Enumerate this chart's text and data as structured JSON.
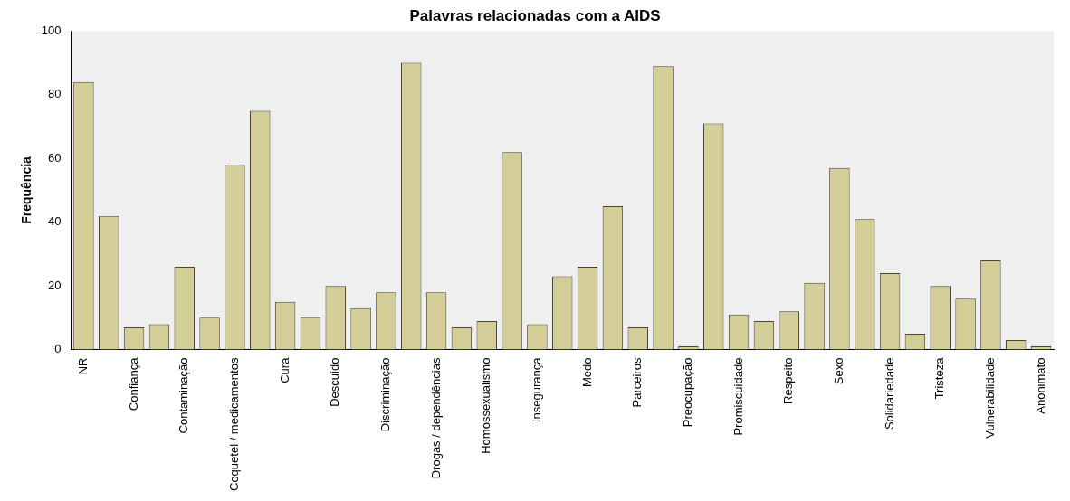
{
  "chart_data": {
    "type": "bar",
    "title": "Palavras relacionadas com a AIDS",
    "ylabel": "Frequência",
    "categories": [
      "NR",
      null,
      "Confiança",
      null,
      "Contaminação",
      null,
      "Coquetel / medicamentos",
      null,
      "Cura",
      null,
      "Descuido",
      null,
      "Discriminação",
      null,
      "Drogas / dependências",
      null,
      "Homossexualismo",
      null,
      "Insegurança",
      null,
      "Medo",
      null,
      "Parceiros",
      null,
      "Preocupação",
      null,
      "Promiscuidade",
      null,
      "Respeito",
      null,
      "Sexo",
      null,
      "Solidariedade",
      null,
      "Tristeza",
      null,
      "Vulnerabilidade",
      null,
      "Anonimato"
    ],
    "values": [
      84,
      42,
      7,
      8,
      26,
      10,
      58,
      75,
      15,
      10,
      20,
      13,
      18,
      90,
      18,
      7,
      9,
      62,
      8,
      23,
      26,
      45,
      7,
      89,
      1,
      71,
      11,
      9,
      12,
      21,
      57,
      41,
      24,
      5,
      20,
      16,
      28,
      3,
      1
    ],
    "color": "#d3cd98",
    "ylim": [
      0,
      100
    ],
    "yticks": [
      0,
      20,
      40,
      60,
      80,
      100
    ],
    "grid": false,
    "legend": false
  }
}
